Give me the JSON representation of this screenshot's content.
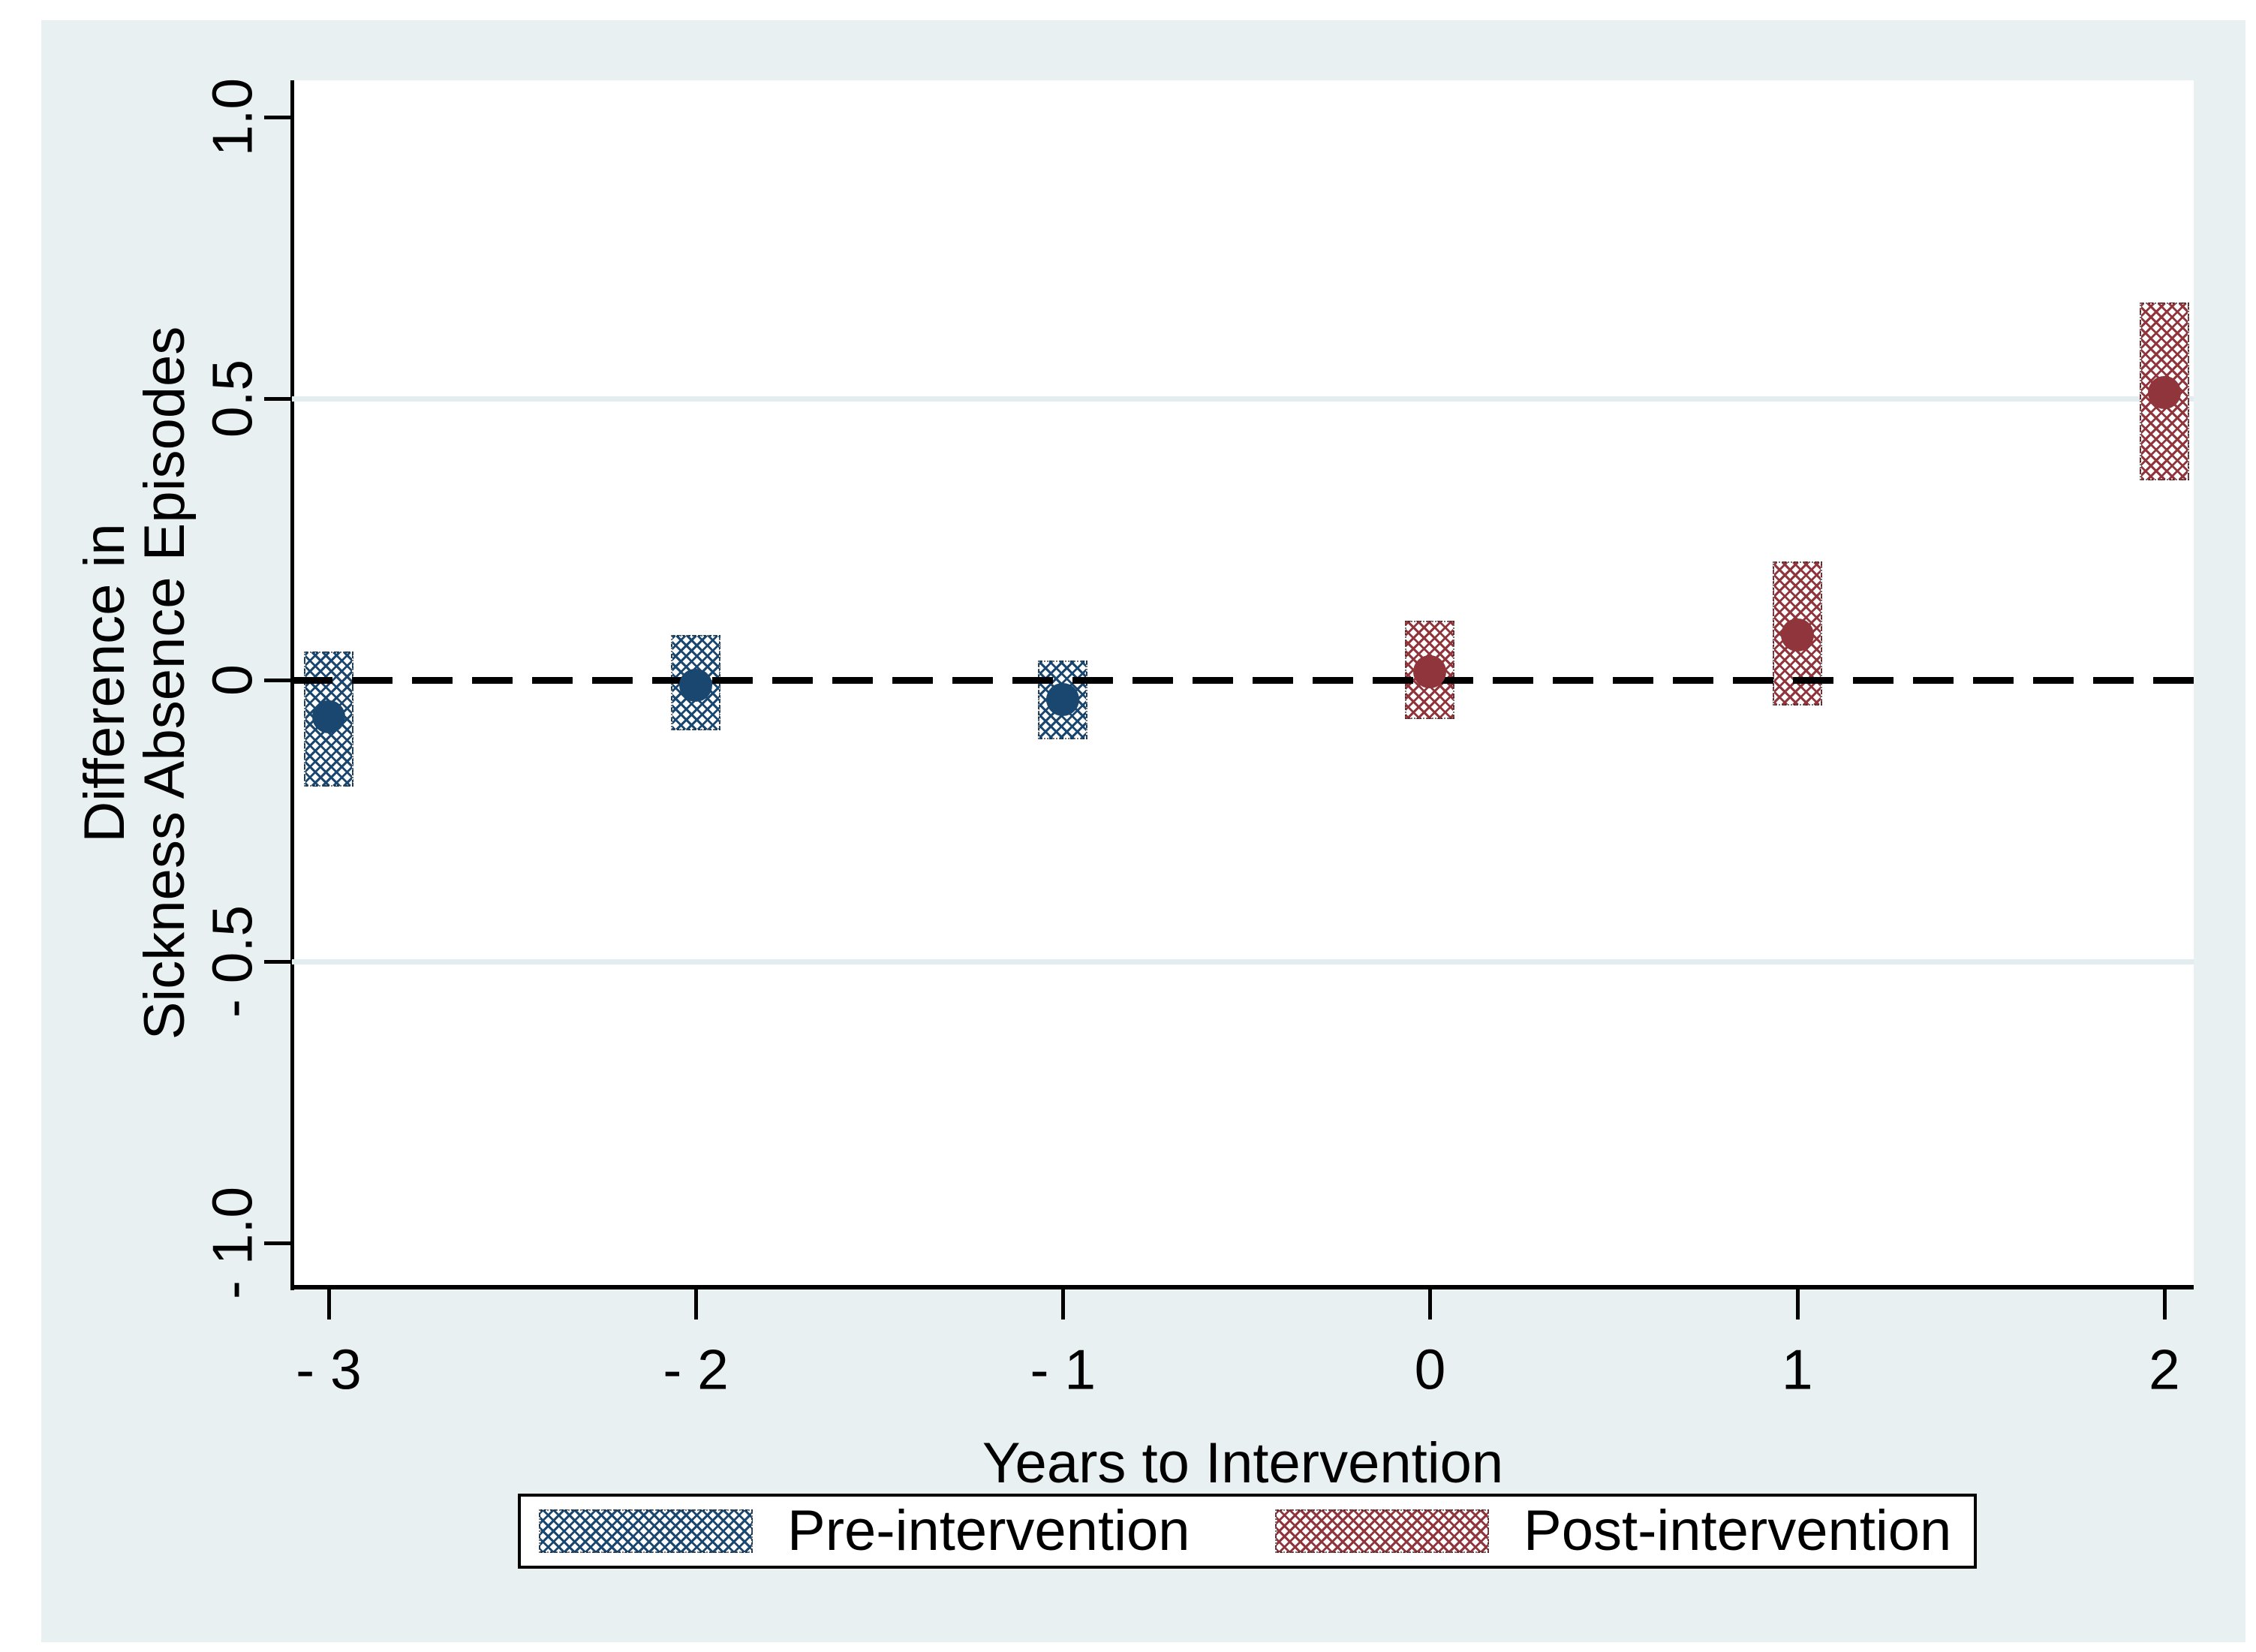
{
  "chart_data": {
    "type": "scatter",
    "title": "",
    "xlabel": "Years to Intervention",
    "ylabel": "Difference in Sickness Absence Episodes",
    "ylabel_lines": [
      "Difference in",
      "Sickness Absence Episodes"
    ],
    "xlim": [
      -3.1,
      2.08
    ],
    "ylim": [
      -1.075,
      1.065
    ],
    "x_ticks": [
      {
        "value": -3,
        "label": "- 3"
      },
      {
        "value": -2,
        "label": "- 2"
      },
      {
        "value": -1,
        "label": "- 1"
      },
      {
        "value": 0,
        "label": "0"
      },
      {
        "value": 1,
        "label": "1"
      },
      {
        "value": 2,
        "label": "2"
      }
    ],
    "y_ticks": [
      {
        "value": 1.0,
        "label": "1.0"
      },
      {
        "value": 0.5,
        "label": "0.5"
      },
      {
        "value": 0,
        "label": "0"
      },
      {
        "value": -0.5,
        "label": "- 0.5"
      },
      {
        "value": -1.0,
        "label": "- 1.0"
      }
    ],
    "gridlines_y": [
      0.5,
      -0.5
    ],
    "reference_line_y": 0,
    "reference_line_style": "dashed-black",
    "ci_box_halfwidth_x": 0.0675,
    "series": [
      {
        "name": "Pre-intervention",
        "color": "#1a476f",
        "marker": "circle",
        "ci_style": "crosshatch-box",
        "points": [
          {
            "x": -3,
            "y": -0.065,
            "ci_low": -0.19,
            "ci_high": 0.05
          },
          {
            "x": -2,
            "y": -0.01,
            "ci_low": -0.09,
            "ci_high": 0.08
          },
          {
            "x": -1,
            "y": -0.035,
            "ci_low": -0.105,
            "ci_high": 0.035
          }
        ]
      },
      {
        "name": "Post-intervention",
        "color": "#90353b",
        "marker": "circle",
        "ci_style": "crosshatch-box",
        "points": [
          {
            "x": 0,
            "y": 0.015,
            "ci_low": -0.07,
            "ci_high": 0.105
          },
          {
            "x": 1,
            "y": 0.08,
            "ci_low": -0.045,
            "ci_high": 0.21
          },
          {
            "x": 2,
            "y": 0.51,
            "ci_low": 0.355,
            "ci_high": 0.67
          }
        ]
      }
    ],
    "legend": {
      "position": "bottom",
      "entries": [
        {
          "label": "Pre-intervention",
          "color": "#1a476f",
          "pattern": "crosshatch"
        },
        {
          "label": "Post-intervention",
          "color": "#90353b",
          "pattern": "crosshatch"
        }
      ]
    },
    "colors": {
      "figure_background": "#ffffff",
      "panel_background": "#e9f0f2",
      "plot_background": "#ffffff",
      "gridline": "#e3edf0",
      "axis": "#000000",
      "pre_series": "#1a476f",
      "post_series": "#90353b"
    }
  }
}
